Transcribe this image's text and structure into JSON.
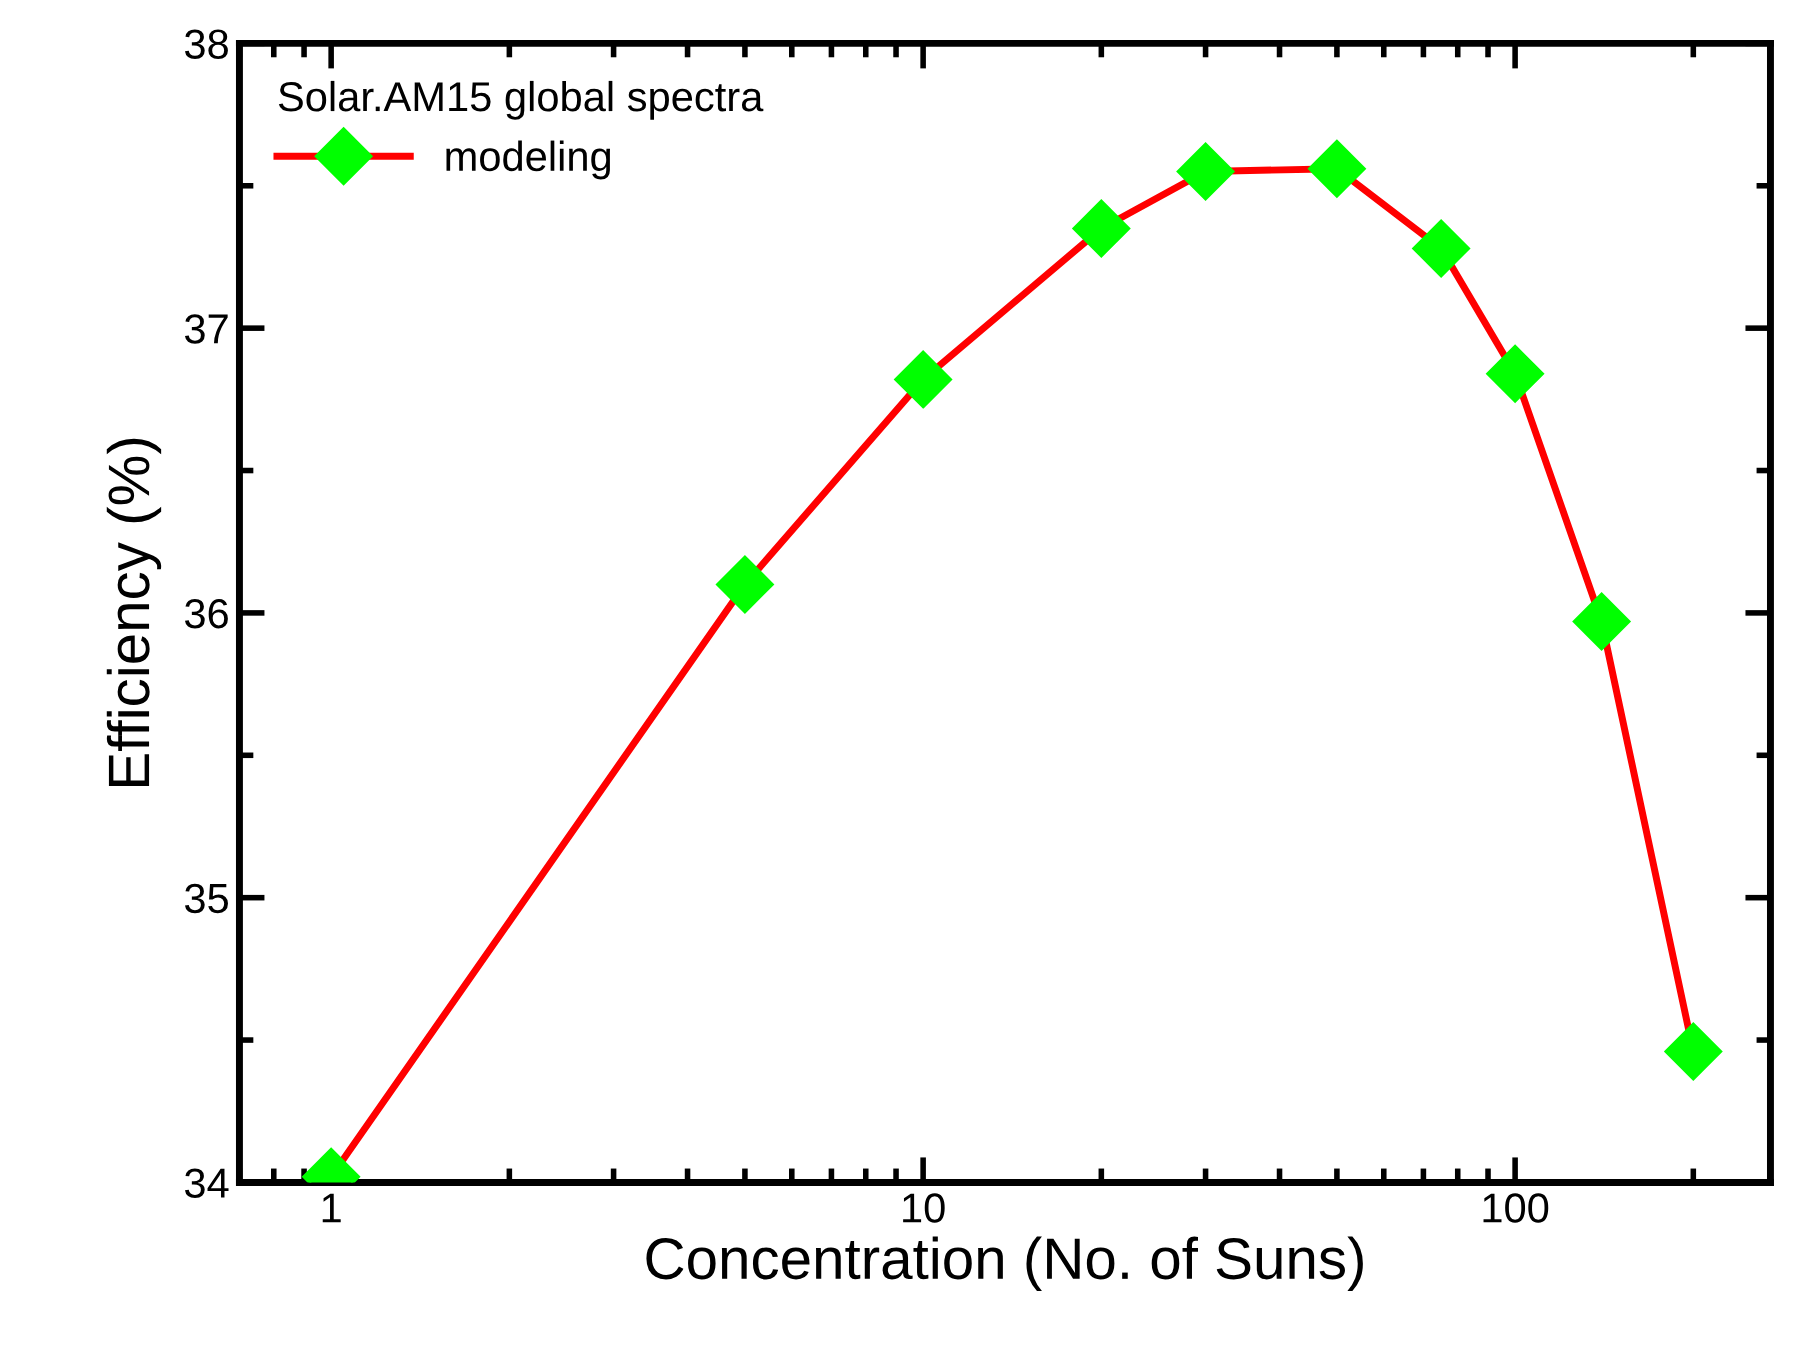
{
  "chart_data": {
    "type": "line",
    "xlabel": "Concentration (No. of Suns)",
    "ylabel": "Efficiency (%)",
    "legend_title": "Solar.AM15 global spectra",
    "x": [
      1,
      5,
      10,
      20,
      30,
      50,
      75,
      100,
      140,
      200
    ],
    "series": [
      {
        "name": "modeling",
        "color": "#ff0000",
        "colors": [
          "#00ff00",
          "#00ff00",
          "#00ff00",
          "#00ff00",
          "#00ff00",
          "#00ff00",
          "#00ff00",
          "#00ff00",
          "#00ff00",
          "#00ff00"
        ],
        "values": [
          34.02,
          36.1,
          36.82,
          37.35,
          37.55,
          37.56,
          37.28,
          36.84,
          35.97,
          34.46
        ]
      }
    ],
    "log": "x",
    "xlim": [
      0.7,
      270
    ],
    "xticks": [
      1,
      10,
      100
    ],
    "ylim": [
      34,
      38
    ],
    "yticks": [
      34,
      35,
      36,
      37,
      38
    ],
    "marker": "diamond",
    "line_style": "solid",
    "legend": "top left",
    "grid": false
  }
}
